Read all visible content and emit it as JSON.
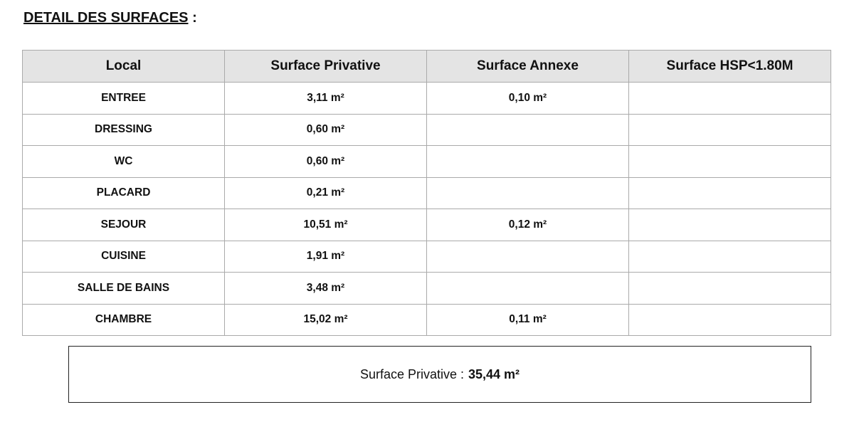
{
  "title": "DETAIL DES SURFACES",
  "title_suffix": " :",
  "table": {
    "headers": [
      "Local",
      "Surface Privative",
      "Surface Annexe",
      "Surface HSP<1.80M"
    ],
    "rows": [
      [
        "ENTREE",
        "3,11 m²",
        "0,10 m²",
        ""
      ],
      [
        "DRESSING",
        "0,60 m²",
        "",
        ""
      ],
      [
        "WC",
        "0,60 m²",
        "",
        ""
      ],
      [
        "PLACARD",
        "0,21 m²",
        "",
        ""
      ],
      [
        "SEJOUR",
        "10,51 m²",
        "0,12 m²",
        ""
      ],
      [
        "CUISINE",
        "1,91 m²",
        "",
        ""
      ],
      [
        "SALLE DE BAINS",
        "3,48 m²",
        "",
        ""
      ],
      [
        "CHAMBRE",
        "15,02 m²",
        "0,11 m²",
        ""
      ]
    ]
  },
  "summary": {
    "label": "Surface Privative :",
    "value": "35,44 m²"
  }
}
